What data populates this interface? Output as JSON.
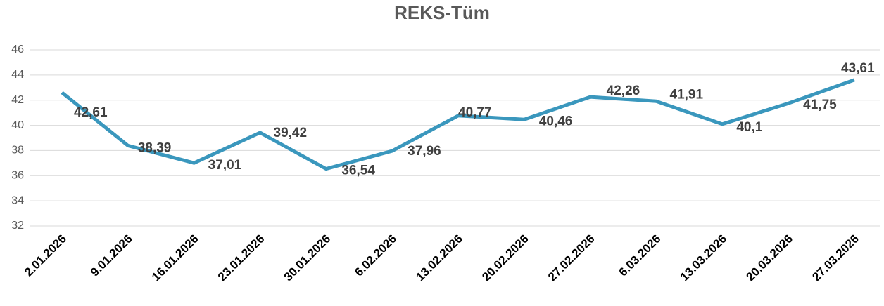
{
  "chart_data": {
    "type": "line",
    "title": "REKS-Tüm",
    "categories": [
      "2.01.2026",
      "9.01.2026",
      "16.01.2026",
      "23.01.2026",
      "30.01.2026",
      "6.02.2026",
      "13.02.2026",
      "20.02.2026",
      "27.02.2026",
      "6.03.2026",
      "13.03.2026",
      "20.03.2026",
      "27.03.2026"
    ],
    "series": [
      {
        "name": "REKS-Tüm",
        "color": "#3a97bd",
        "values": [
          42.61,
          38.39,
          37.01,
          39.42,
          36.54,
          37.96,
          40.77,
          40.46,
          42.26,
          41.91,
          40.1,
          41.75,
          43.61
        ],
        "value_labels": [
          "42,61",
          "38,39",
          "37,01",
          "39,42",
          "36,54",
          "37,96",
          "40,77",
          "40,46",
          "42,26",
          "41,91",
          "40,1",
          "41,75",
          "43,61"
        ]
      }
    ],
    "ylim": [
      32,
      46
    ],
    "yticks": [
      32,
      34,
      36,
      38,
      40,
      42,
      44,
      46
    ],
    "grid": true
  }
}
